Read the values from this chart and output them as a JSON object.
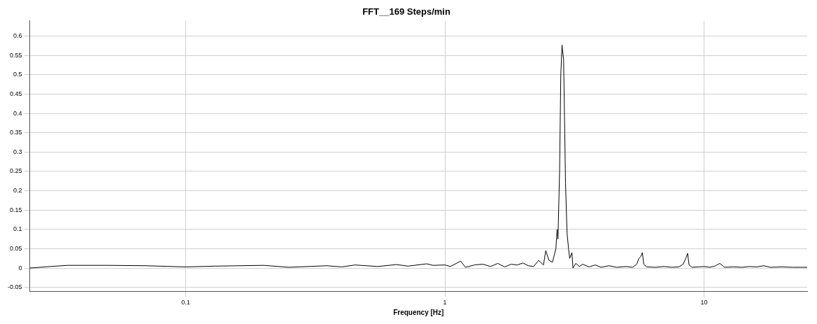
{
  "chart_data": {
    "type": "line",
    "title": "FFT__169 Steps/min",
    "xlabel": "Frequency [Hz]",
    "log": "x",
    "grid": true,
    "legend": false,
    "marker": "none",
    "line_style": "solid",
    "xlim": [
      0.025,
      25
    ],
    "xticks": [
      0.1,
      1,
      10
    ],
    "ylim": [
      -0.06,
      0.64
    ],
    "yticks": [
      -0.05,
      0,
      0.05,
      0.1,
      0.15,
      0.2,
      0.25,
      0.3,
      0.35,
      0.4,
      0.45,
      0.5,
      0.55,
      0.6
    ],
    "series": [
      {
        "color": "#000000",
        "x": [
          0.025,
          0.03,
          0.035,
          0.05,
          0.07,
          0.1,
          0.13,
          0.2,
          0.25,
          0.35,
          0.4,
          0.45,
          0.55,
          0.65,
          0.72,
          0.85,
          0.9,
          1.0,
          1.05,
          1.15,
          1.2,
          1.3,
          1.4,
          1.5,
          1.6,
          1.7,
          1.8,
          1.9,
          2.0,
          2.1,
          2.2,
          2.3,
          2.4,
          2.45,
          2.52,
          2.6,
          2.68,
          2.71,
          2.73,
          2.77,
          2.8,
          2.83,
          2.87,
          2.9,
          2.92,
          2.96,
          3.0,
          3.03,
          3.09,
          3.12,
          3.2,
          3.3,
          3.4,
          3.6,
          3.8,
          4.0,
          4.3,
          4.6,
          5.0,
          5.3,
          5.5,
          5.6,
          5.7,
          5.78,
          5.85,
          6.0,
          6.5,
          7.0,
          7.5,
          8.0,
          8.3,
          8.5,
          8.64,
          8.75,
          9.0,
          9.5,
          10.0,
          10.5,
          11.0,
          11.5,
          12.0,
          13.0,
          14.0,
          15.0,
          16.0,
          17.0,
          18.0,
          20.0,
          22.0,
          25.0
        ],
        "values": [
          0.0,
          0.004,
          0.007,
          0.007,
          0.006,
          0.003,
          0.005,
          0.007,
          0.002,
          0.006,
          0.003,
          0.008,
          0.004,
          0.009,
          0.005,
          0.011,
          0.007,
          0.008,
          0.004,
          0.018,
          0.002,
          0.008,
          0.01,
          0.004,
          0.012,
          0.003,
          0.01,
          0.008,
          0.013,
          0.006,
          0.004,
          0.02,
          0.008,
          0.045,
          0.02,
          0.015,
          0.05,
          0.1,
          0.075,
          0.25,
          0.5,
          0.577,
          0.54,
          0.35,
          0.22,
          0.09,
          0.05,
          0.025,
          0.04,
          0.0,
          0.012,
          0.004,
          0.01,
          0.003,
          0.008,
          0.002,
          0.006,
          0.002,
          0.004,
          0.002,
          0.01,
          0.025,
          0.03,
          0.04,
          0.01,
          0.003,
          0.002,
          0.004,
          0.002,
          0.003,
          0.01,
          0.025,
          0.038,
          0.008,
          0.002,
          0.003,
          0.004,
          0.002,
          0.005,
          0.012,
          0.002,
          0.003,
          0.002,
          0.004,
          0.003,
          0.006,
          0.002,
          0.003,
          0.002,
          0.002
        ]
      }
    ]
  }
}
